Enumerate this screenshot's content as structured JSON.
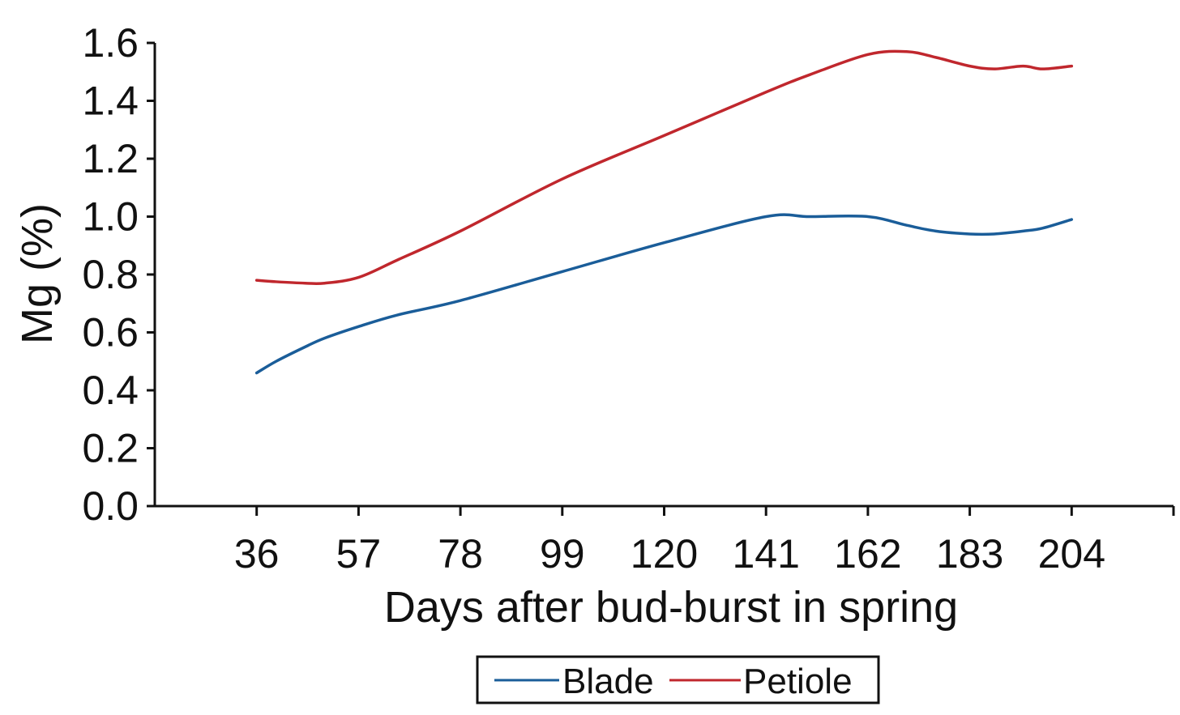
{
  "chart_data": {
    "type": "line",
    "xlabel": "Days after bud-burst in spring",
    "ylabel": "Mg (%)",
    "categories": [
      "36",
      "57",
      "78",
      "99",
      "120",
      "141",
      "162",
      "183",
      "204"
    ],
    "x_tick_labels": [
      "36",
      "57",
      "78",
      "99",
      "120",
      "141",
      "162",
      "183",
      "204"
    ],
    "y_tick_labels": [
      "0.0",
      "0.2",
      "0.4",
      "0.6",
      "0.8",
      "1.0",
      "1.2",
      "1.4",
      "1.6"
    ],
    "ylim": [
      0,
      1.6
    ],
    "grid": false,
    "legend_position": "bottom",
    "x": [
      36,
      40,
      46,
      50,
      57,
      65,
      78,
      99,
      120,
      141,
      150,
      162,
      170,
      176,
      183,
      188,
      194,
      198,
      204
    ],
    "series": [
      {
        "name": "Blade",
        "color": "#1a5d99",
        "values": [
          0.46,
          0.5,
          0.55,
          0.58,
          0.62,
          0.66,
          0.71,
          0.81,
          0.91,
          1.0,
          1.0,
          1.0,
          0.97,
          0.95,
          0.94,
          0.94,
          0.95,
          0.96,
          0.99
        ]
      },
      {
        "name": "Petiole",
        "color": "#c0272d",
        "values": [
          0.78,
          0.775,
          0.77,
          0.77,
          0.79,
          0.85,
          0.95,
          1.13,
          1.28,
          1.43,
          1.49,
          1.56,
          1.57,
          1.55,
          1.52,
          1.51,
          1.52,
          1.51,
          1.52
        ]
      }
    ]
  }
}
